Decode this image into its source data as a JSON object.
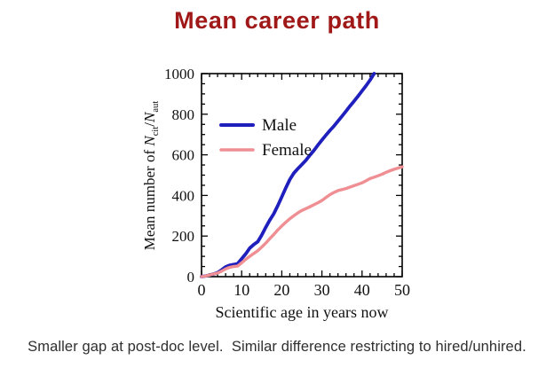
{
  "title": {
    "text": "Mean career path"
  },
  "caption": "Smaller gap at post-doc level.  Similar difference restricting to hired/unhired.",
  "colors": {
    "title_red": "#a01818",
    "male_blue": "#1f1fbe",
    "female_pink": "#ef8e93",
    "axis": "#000000",
    "caption_text": "#2f2f2f"
  },
  "chart_data": {
    "type": "line",
    "title": "",
    "xlabel": "Scientific age in years now",
    "ylabel": "Mean number of Ncit/Naut",
    "ylabel_rich": {
      "prefix": "Mean number of ",
      "var1": "N",
      "sub1": "cit",
      "slash": "/",
      "var2": "N",
      "sub2": "aut"
    },
    "xlim": [
      0,
      50
    ],
    "ylim": [
      0,
      1000
    ],
    "xticks": [
      0,
      10,
      20,
      30,
      40,
      50
    ],
    "yticks": [
      0,
      200,
      400,
      600,
      800,
      1000
    ],
    "x_minor_step": 2,
    "y_minor_step": 50,
    "grid": false,
    "legend_position": "upper-left-inside",
    "series": [
      {
        "name": "Male",
        "color": "#1f1fbe",
        "x": [
          0,
          1,
          2,
          3,
          4,
          5,
          6,
          7,
          8,
          9,
          10,
          11,
          12,
          13,
          14,
          15,
          16,
          17,
          18,
          19,
          20,
          21,
          22,
          23,
          24,
          25,
          26,
          27,
          28,
          29,
          30,
          31,
          32,
          33,
          34,
          35,
          36,
          37,
          38,
          39,
          40,
          41,
          42,
          43
        ],
        "y": [
          0,
          3,
          8,
          13,
          20,
          33,
          48,
          56,
          60,
          64,
          88,
          112,
          140,
          158,
          172,
          205,
          243,
          278,
          310,
          350,
          393,
          437,
          478,
          510,
          532,
          552,
          573,
          598,
          622,
          648,
          673,
          697,
          720,
          742,
          766,
          790,
          815,
          840,
          864,
          889,
          915,
          940,
          968,
          1000
        ]
      },
      {
        "name": "Female",
        "color": "#ef8e93",
        "x": [
          0,
          1,
          2,
          3,
          4,
          5,
          6,
          7,
          8,
          9,
          10,
          11,
          12,
          13,
          14,
          15,
          16,
          17,
          18,
          19,
          20,
          21,
          22,
          23,
          24,
          25,
          26,
          27,
          28,
          29,
          30,
          31,
          32,
          33,
          34,
          35,
          36,
          37,
          38,
          39,
          40,
          41,
          42,
          43,
          44,
          45,
          46,
          47,
          48,
          49,
          50
        ],
        "y": [
          0,
          3,
          8,
          13,
          18,
          27,
          38,
          46,
          50,
          52,
          68,
          85,
          100,
          114,
          128,
          146,
          165,
          187,
          208,
          230,
          250,
          268,
          285,
          300,
          314,
          326,
          335,
          344,
          354,
          364,
          375,
          390,
          404,
          415,
          424,
          429,
          434,
          441,
          448,
          455,
          462,
          472,
          483,
          490,
          497,
          505,
          514,
          522,
          529,
          535,
          541
        ]
      }
    ]
  }
}
